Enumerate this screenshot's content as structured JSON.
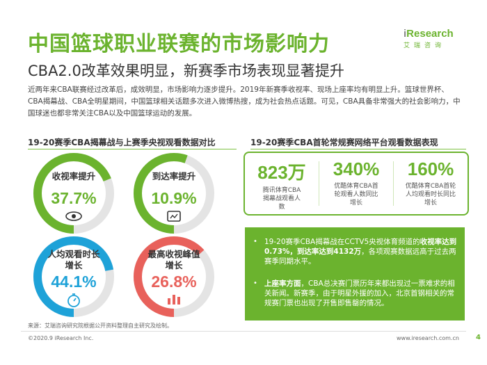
{
  "header": {
    "title": "中国篮球职业联赛的市场影响力",
    "subtitle": "CBA2.0改革效果明显，新赛季市场表现显著提升"
  },
  "logo": {
    "brand_i": "i",
    "brand_rest": "Research",
    "sub": "艾瑞咨询"
  },
  "intro": "近两年来CBA联赛经过改革后，成效明显，市场影响力逐步提升。2019年新赛季收视率、现场上座率均有明显上升。篮球世界杯、CBA揭幕战、CBA全明星期间，中国篮球相关话题多次进入微博热搜，成为社会热点话题。可见，CBA具备非常强大的社会影响力，中国球迷也都非常关注CBA以及中国篮球运动的发展。",
  "left_section": {
    "heading": "19-20赛季CBA揭幕战与上赛季央视观看数据对比",
    "donuts": [
      {
        "label": "收视率提升",
        "value": "37.7%",
        "fraction": 0.377,
        "color": "#6bb32e",
        "icon": "eye-icon"
      },
      {
        "label": "到达率提升",
        "value": "10.9%",
        "fraction": 0.109,
        "color": "#6bb32e",
        "icon": "tv-screen-icon"
      },
      {
        "label": "人均观看时长增长",
        "value": "44.1%",
        "fraction": 0.441,
        "color": "#1ea2d8",
        "icon": "stopwatch-icon"
      },
      {
        "label": "最高收视峰值增长",
        "value": "26.8%",
        "fraction": 0.268,
        "color": "#e8615b",
        "icon": "bar-chart-icon"
      }
    ]
  },
  "right_section": {
    "heading": "19-20赛季CBA首轮常规赛网络平台观看数据表现",
    "stats": [
      {
        "value": "823万",
        "desc": "腾讯体育CBA揭幕战观看人数"
      },
      {
        "value": "340%",
        "desc": "优酷体育CBA首轮观看人数同比增长"
      },
      {
        "value": "160%",
        "desc": "优酷体育CBA首轮人均观看时长同比增长"
      }
    ]
  },
  "highlights": {
    "bullet_glyph": "•",
    "b1_pre": "19-20赛季CBA揭幕战在CCTV5央视体育频道的",
    "b1_bold": "收视率达到0.73%，到达率达到4132万",
    "b1_post": "，各项观赛数据远高于过去两赛季同期水平。",
    "b2_bold": "上座率方面",
    "b2_post": "，CBA总决赛门票历年来都出现过一票难求的相关新闻。新赛季，由于明星外援的加入，北京首钢相关的常规赛门票也出现了开售即售罄的情况。"
  },
  "source": "来源：艾瑞咨询研究院根据公开资料整理自主研究及绘制。",
  "footer": {
    "left": "©2020.9 iResearch Inc.",
    "right": "www.iresearch.com.cn",
    "page": "4"
  },
  "colors": {
    "accent": "#6bb32e",
    "blue": "#1ea2d8",
    "red": "#e8615b",
    "track": "#e4e4e4"
  }
}
